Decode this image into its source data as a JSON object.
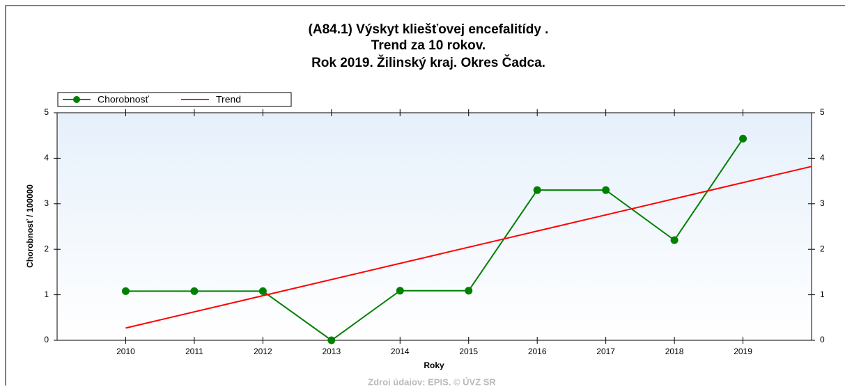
{
  "chart_data": {
    "type": "line",
    "title": [
      "(A84.1) Výskyt kliešťovej encefalitídy .",
      "Trend za 10 rokov.",
      "Rok 2019. Žilinský kraj. Okres Čadca."
    ],
    "x_label": "Roky",
    "y_label": "Chorobnosť / 100000",
    "footer": "Zdroj údajov: EPIS, © ÚVZ SR",
    "x": [
      2010,
      2011,
      2012,
      2013,
      2014,
      2015,
      2016,
      2017,
      2018,
      2019
    ],
    "series": [
      {
        "name": "Chorobnosť",
        "color": "#008000",
        "values": [
          1.08,
          1.08,
          1.08,
          0,
          1.09,
          1.09,
          3.3,
          3.3,
          2.2,
          4.43
        ]
      },
      {
        "name": "Trend",
        "color": "#ff0000",
        "x": [
          2010,
          2020
        ],
        "values": [
          0.27,
          3.82
        ]
      }
    ],
    "xlim": [
      2009,
      2020
    ],
    "xticks": [
      2010,
      2011,
      2012,
      2013,
      2014,
      2015,
      2016,
      2017,
      2018,
      2019
    ],
    "ylim": [
      0,
      5
    ],
    "yticks": [
      0,
      1,
      2,
      3,
      4,
      5
    ],
    "legend": "top-left",
    "grid": false
  }
}
